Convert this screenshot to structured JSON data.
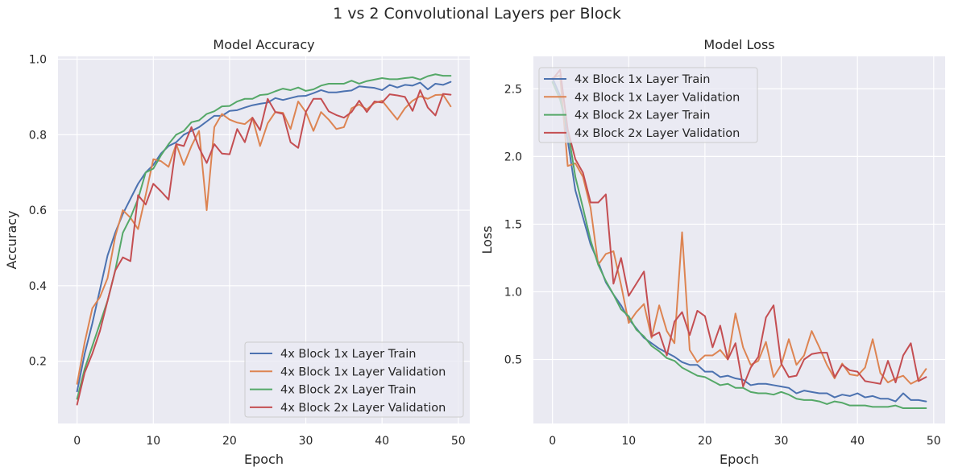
{
  "figure": {
    "suptitle": "1 vs 2 Convolutional Layers per Block"
  },
  "colors": {
    "background": "#eaeaf2",
    "grid": "#ffffff",
    "series": [
      "#4c72b0",
      "#dd8452",
      "#55a868",
      "#c44e52"
    ]
  },
  "chart_data": [
    {
      "type": "line",
      "title": "Model Accuracy",
      "xlabel": "Epoch",
      "ylabel": "Accuracy",
      "xlim": [
        -2.5,
        51.5
      ],
      "ylim": [
        0.035,
        1.0075
      ],
      "xticks": [
        0,
        10,
        20,
        30,
        40,
        50
      ],
      "yticks": [
        0.2,
        0.4,
        0.6,
        0.8,
        1.0
      ],
      "ytick_labels": [
        "0.2",
        "0.4",
        "0.6",
        "0.8",
        "1.0"
      ],
      "legend_position": "lower right",
      "x": [
        0,
        1,
        2,
        3,
        4,
        5,
        6,
        7,
        8,
        9,
        10,
        11,
        12,
        13,
        14,
        15,
        16,
        17,
        18,
        19,
        20,
        21,
        22,
        23,
        24,
        25,
        26,
        27,
        28,
        29,
        30,
        31,
        32,
        33,
        34,
        35,
        36,
        37,
        38,
        39,
        40,
        41,
        42,
        43,
        44,
        45,
        46,
        47,
        48,
        49
      ],
      "series": [
        {
          "name": "4x Block 1x Layer Train",
          "values": [
            0.12,
            0.22,
            0.3,
            0.39,
            0.48,
            0.54,
            0.59,
            0.63,
            0.67,
            0.7,
            0.72,
            0.75,
            0.77,
            0.78,
            0.8,
            0.81,
            0.82,
            0.835,
            0.85,
            0.85,
            0.863,
            0.865,
            0.872,
            0.878,
            0.882,
            0.885,
            0.897,
            0.892,
            0.897,
            0.902,
            0.903,
            0.91,
            0.918,
            0.912,
            0.912,
            0.915,
            0.917,
            0.928,
            0.926,
            0.924,
            0.918,
            0.932,
            0.925,
            0.932,
            0.93,
            0.938,
            0.92,
            0.935,
            0.932,
            0.94
          ]
        },
        {
          "name": "4x Block 1x Layer Validation",
          "values": [
            0.14,
            0.25,
            0.34,
            0.37,
            0.42,
            0.53,
            0.6,
            0.58,
            0.55,
            0.64,
            0.735,
            0.73,
            0.715,
            0.775,
            0.72,
            0.77,
            0.81,
            0.6,
            0.82,
            0.855,
            0.84,
            0.832,
            0.828,
            0.845,
            0.77,
            0.83,
            0.86,
            0.858,
            0.815,
            0.888,
            0.86,
            0.81,
            0.86,
            0.84,
            0.815,
            0.82,
            0.87,
            0.88,
            0.867,
            0.884,
            0.89,
            0.865,
            0.84,
            0.87,
            0.89,
            0.902,
            0.895,
            0.905,
            0.906,
            0.875
          ]
        },
        {
          "name": "4x Block 2x Layer Train",
          "values": [
            0.1,
            0.18,
            0.24,
            0.3,
            0.36,
            0.44,
            0.54,
            0.58,
            0.63,
            0.7,
            0.71,
            0.745,
            0.775,
            0.8,
            0.81,
            0.833,
            0.838,
            0.855,
            0.862,
            0.875,
            0.876,
            0.888,
            0.895,
            0.895,
            0.905,
            0.907,
            0.915,
            0.922,
            0.918,
            0.925,
            0.916,
            0.92,
            0.93,
            0.935,
            0.935,
            0.935,
            0.943,
            0.935,
            0.942,
            0.946,
            0.95,
            0.947,
            0.947,
            0.95,
            0.952,
            0.946,
            0.955,
            0.96,
            0.956,
            0.956
          ]
        },
        {
          "name": "4x Block 2x Layer Validation",
          "values": [
            0.085,
            0.17,
            0.22,
            0.28,
            0.36,
            0.44,
            0.475,
            0.465,
            0.64,
            0.615,
            0.67,
            0.65,
            0.628,
            0.775,
            0.77,
            0.82,
            0.765,
            0.725,
            0.775,
            0.75,
            0.748,
            0.815,
            0.78,
            0.845,
            0.812,
            0.895,
            0.86,
            0.855,
            0.78,
            0.765,
            0.86,
            0.895,
            0.895,
            0.862,
            0.852,
            0.845,
            0.86,
            0.89,
            0.86,
            0.888,
            0.885,
            0.907,
            0.904,
            0.9,
            0.863,
            0.918,
            0.872,
            0.851,
            0.908,
            0.906
          ]
        }
      ]
    },
    {
      "type": "line",
      "title": "Model Loss",
      "xlabel": "Epoch",
      "ylabel": "Loss",
      "xlim": [
        -2.5,
        51.5
      ],
      "ylim": [
        0.027,
        2.74
      ],
      "xticks": [
        0,
        10,
        20,
        30,
        40,
        50
      ],
      "yticks": [
        0.5,
        1.0,
        1.5,
        2.0,
        2.5
      ],
      "ytick_labels": [
        "0.5",
        "1.0",
        "1.5",
        "2.0",
        "2.5"
      ],
      "legend_position": "upper left",
      "x": [
        0,
        1,
        2,
        3,
        4,
        5,
        6,
        7,
        8,
        9,
        10,
        11,
        12,
        13,
        14,
        15,
        16,
        17,
        18,
        19,
        20,
        21,
        22,
        23,
        24,
        25,
        26,
        27,
        28,
        29,
        30,
        31,
        32,
        33,
        34,
        35,
        36,
        37,
        38,
        39,
        40,
        41,
        42,
        43,
        44,
        45,
        46,
        47,
        48,
        49
      ],
      "series": [
        {
          "name": "4x Block 1x Layer Train",
          "values": [
            2.58,
            2.45,
            2.12,
            1.75,
            1.55,
            1.35,
            1.22,
            1.07,
            0.98,
            0.9,
            0.8,
            0.73,
            0.66,
            0.62,
            0.58,
            0.55,
            0.52,
            0.48,
            0.46,
            0.46,
            0.41,
            0.41,
            0.37,
            0.38,
            0.36,
            0.35,
            0.31,
            0.32,
            0.32,
            0.31,
            0.3,
            0.29,
            0.25,
            0.27,
            0.26,
            0.25,
            0.25,
            0.22,
            0.24,
            0.23,
            0.25,
            0.22,
            0.23,
            0.21,
            0.21,
            0.19,
            0.25,
            0.2,
            0.2,
            0.19
          ]
        },
        {
          "name": "4x Block 1x Layer Validation",
          "values": [
            2.58,
            2.6,
            1.93,
            1.95,
            1.85,
            1.62,
            1.2,
            1.28,
            1.3,
            1.05,
            0.77,
            0.85,
            0.91,
            0.66,
            0.9,
            0.71,
            0.62,
            1.44,
            0.57,
            0.48,
            0.53,
            0.53,
            0.57,
            0.5,
            0.84,
            0.59,
            0.46,
            0.49,
            0.63,
            0.37,
            0.46,
            0.65,
            0.46,
            0.53,
            0.71,
            0.59,
            0.46,
            0.36,
            0.47,
            0.39,
            0.38,
            0.44,
            0.65,
            0.4,
            0.33,
            0.36,
            0.38,
            0.32,
            0.35,
            0.43
          ]
        },
        {
          "name": "4x Block 2x Layer Train",
          "values": [
            2.55,
            2.42,
            2.2,
            1.85,
            1.62,
            1.38,
            1.2,
            1.08,
            0.98,
            0.87,
            0.82,
            0.72,
            0.67,
            0.6,
            0.56,
            0.51,
            0.49,
            0.44,
            0.41,
            0.38,
            0.37,
            0.34,
            0.31,
            0.32,
            0.29,
            0.29,
            0.26,
            0.25,
            0.25,
            0.24,
            0.26,
            0.24,
            0.21,
            0.2,
            0.2,
            0.19,
            0.17,
            0.19,
            0.18,
            0.16,
            0.16,
            0.16,
            0.15,
            0.15,
            0.15,
            0.16,
            0.14,
            0.14,
            0.14,
            0.14
          ]
        },
        {
          "name": "4x Block 2x Layer Validation",
          "values": [
            2.57,
            2.64,
            2.2,
            1.98,
            1.88,
            1.66,
            1.66,
            1.72,
            1.06,
            1.25,
            0.97,
            1.06,
            1.15,
            0.67,
            0.7,
            0.53,
            0.78,
            0.85,
            0.68,
            0.86,
            0.82,
            0.59,
            0.75,
            0.5,
            0.62,
            0.3,
            0.44,
            0.52,
            0.81,
            0.9,
            0.47,
            0.37,
            0.38,
            0.5,
            0.54,
            0.55,
            0.55,
            0.37,
            0.46,
            0.42,
            0.41,
            0.34,
            0.33,
            0.32,
            0.49,
            0.33,
            0.53,
            0.62,
            0.34,
            0.37
          ]
        }
      ]
    }
  ]
}
